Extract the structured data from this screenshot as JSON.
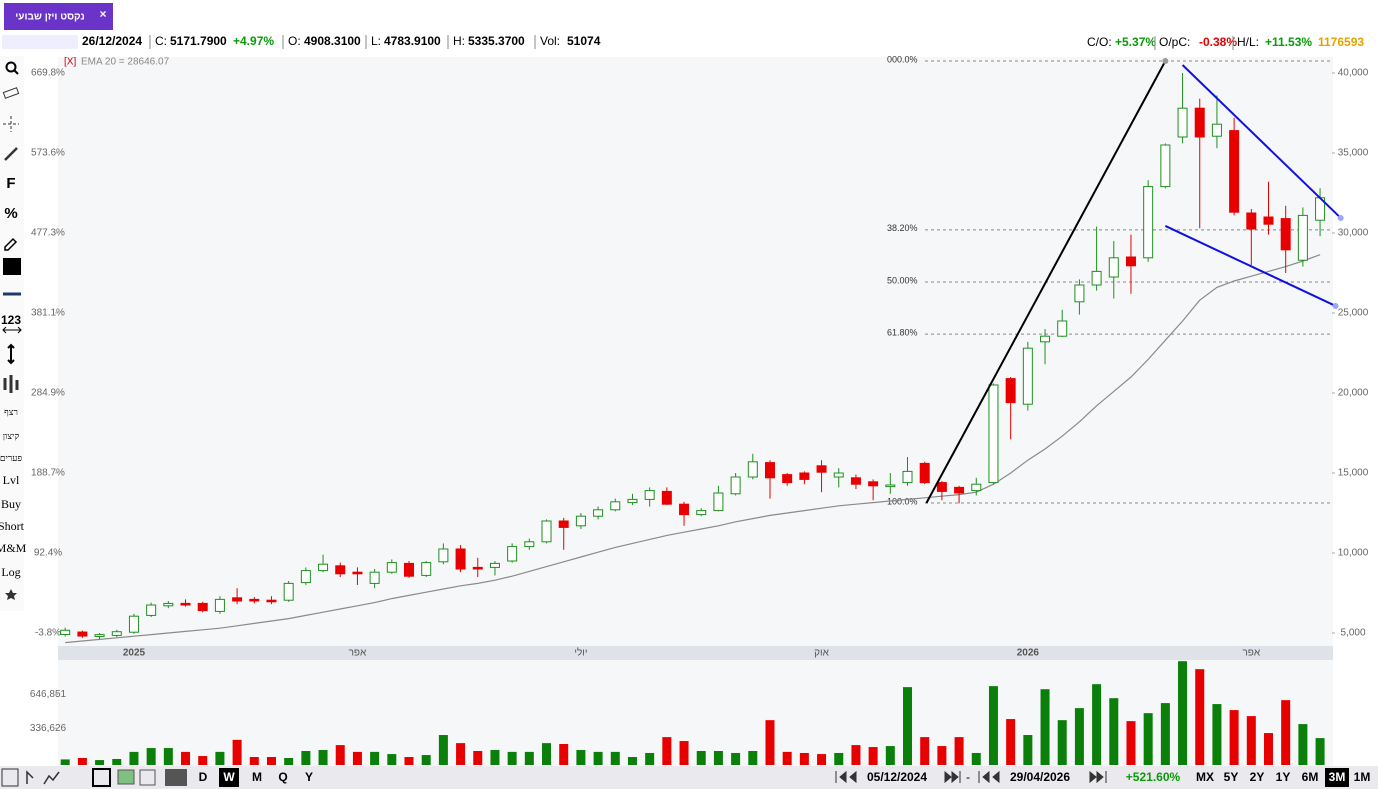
{
  "tab": {
    "title": "נקסט ויזן שבועי",
    "close": "×"
  },
  "header": {
    "date": "26/12/2024",
    "c_label": "C:",
    "c": "5171.7900",
    "c_change": "+4.97%",
    "o_label": "O:",
    "o": "4908.3100",
    "l_label": "L:",
    "l": "4783.9100",
    "h_label": "H:",
    "h": "5335.3700",
    "vol_label": "Vol:",
    "vol": "51074",
    "co_label": "C/O:",
    "co": "+5.37%",
    "opc_label": "O/pC:",
    "opc": "-0.38%",
    "hl_label": "H/L:",
    "hl": "+11.53%",
    "total": "1176593"
  },
  "sidebar": {
    "items": [
      "F",
      "%",
      "123",
      "רצף",
      "קיצון",
      "פערים",
      "Lvl",
      "Buy",
      "Short",
      "M&M",
      "Log"
    ]
  },
  "bottom": {
    "periods": [
      "D",
      "W",
      "M",
      "Q",
      "Y"
    ],
    "active_period": "W",
    "from": "05/12/2024",
    "dash": "-",
    "to": "29/04/2026",
    "change": "+521.60%",
    "ranges": [
      "MX",
      "5Y",
      "2Y",
      "1Y",
      "6M",
      "3M",
      "1M"
    ],
    "active_range": "3M"
  },
  "chart_data": {
    "type": "candlestick",
    "ema_tag": "[X]",
    "ema_label": "EMA 20 = 28646.07",
    "categories": [
      null,
      null,
      null,
      null,
      "2025",
      null,
      null,
      null,
      null,
      null,
      null,
      null,
      null,
      null,
      null,
      null,
      null,
      "אפר",
      null,
      null,
      null,
      null,
      null,
      null,
      null,
      null,
      null,
      null,
      null,
      null,
      "יולי",
      null,
      null,
      null,
      null,
      null,
      null,
      null,
      null,
      null,
      null,
      null,
      null,
      null,
      "אוק",
      null,
      null,
      null,
      null,
      null,
      null,
      null,
      null,
      null,
      null,
      null,
      "2026",
      null,
      null,
      null,
      null,
      null,
      null,
      null,
      null,
      null,
      null,
      null,
      null,
      "אפר",
      null,
      null,
      null,
      null
    ],
    "open": [
      4908.31,
      5060,
      4780,
      4850,
      5050,
      6100,
      6700,
      6850,
      6850,
      6350,
      7200,
      7100,
      7050,
      7050,
      8150,
      8900,
      9200,
      8800,
      8100,
      8800,
      9350,
      8600,
      9450,
      10250,
      9100,
      9100,
      9500,
      10400,
      10700,
      12000,
      11700,
      12300,
      12700,
      13150,
      13350,
      13850,
      13050,
      12400,
      12650,
      13700,
      14750,
      15650,
      14900,
      15000,
      15450,
      14750,
      14700,
      14450,
      14150,
      14400,
      15600,
      14400,
      14100,
      13900,
      14400,
      20900,
      19300,
      23200,
      23550,
      25700,
      26750,
      27250,
      28500,
      28450,
      32900,
      36000,
      37800,
      36050,
      36400,
      31250,
      31000,
      30900,
      28300,
      30800
    ],
    "high": [
      5335.37,
      5150,
      5000,
      5200,
      6200,
      6900,
      7000,
      7100,
      6950,
      7300,
      7800,
      7250,
      7300,
      8250,
      9100,
      9900,
      9400,
      9100,
      9000,
      9600,
      9500,
      9500,
      10600,
      10500,
      9700,
      9500,
      10600,
      10900,
      12100,
      12200,
      12500,
      12900,
      13400,
      13700,
      14100,
      14100,
      13200,
      12800,
      14200,
      15000,
      16200,
      15800,
      15000,
      15100,
      15800,
      15300,
      14900,
      14600,
      15000,
      16000,
      15700,
      14500,
      14200,
      14700,
      20600,
      21000,
      23200,
      24000,
      25200,
      27100,
      30400,
      29500,
      29900,
      33300,
      35600,
      40000,
      38400,
      38600,
      37200,
      31500,
      33200,
      31700,
      31600,
      32800
    ],
    "low": [
      4783.91,
      4700,
      4600,
      4750,
      4950,
      6000,
      6550,
      6650,
      6300,
      6200,
      6800,
      6850,
      6800,
      6950,
      8000,
      8800,
      8500,
      8000,
      7800,
      8700,
      8450,
      8500,
      9300,
      8800,
      8500,
      8600,
      9400,
      10200,
      10600,
      10200,
      11500,
      12100,
      12600,
      13000,
      12900,
      13000,
      11700,
      12300,
      12600,
      13600,
      14600,
      13400,
      14200,
      14300,
      13800,
      14100,
      14000,
      13300,
      13700,
      14200,
      14300,
      13300,
      13100,
      13600,
      14300,
      17100,
      18900,
      21800,
      23500,
      24900,
      26400,
      25900,
      26200,
      28200,
      32800,
      35600,
      30300,
      35300,
      31100,
      28000,
      29900,
      27500,
      27900,
      29800
    ],
    "close": [
      5171.79,
      4810,
      4900,
      5080,
      6050,
      6750,
      6850,
      6750,
      6400,
      7100,
      7000,
      7000,
      6950,
      8100,
      8900,
      9300,
      8700,
      8700,
      8800,
      9400,
      8550,
      9400,
      10250,
      9000,
      9000,
      9350,
      10400,
      10700,
      12000,
      11600,
      12300,
      12700,
      13200,
      13350,
      13900,
      13050,
      12400,
      12650,
      13750,
      14750,
      15700,
      14700,
      14400,
      14600,
      15050,
      15000,
      14300,
      14200,
      14250,
      15100,
      14400,
      13850,
      13750,
      14300,
      20500,
      19400,
      22800,
      23550,
      24500,
      26750,
      27600,
      28450,
      27950,
      32900,
      35500,
      37800,
      36000,
      36800,
      31300,
      30250,
      30550,
      28950,
      31100,
      32200
    ],
    "up_color": "#1f8f1f",
    "down_color": "#e80000",
    "ema": {
      "name": "EMA 20",
      "color": "#8a8a8a",
      "values": [
        4400,
        4500,
        4600,
        4700,
        4800,
        4900,
        5000,
        5100,
        5200,
        5300,
        5450,
        5600,
        5750,
        5900,
        6100,
        6300,
        6500,
        6700,
        6900,
        7150,
        7350,
        7550,
        7750,
        7950,
        8100,
        8300,
        8550,
        8850,
        9150,
        9450,
        9750,
        10050,
        10350,
        10600,
        10850,
        11100,
        11300,
        11500,
        11700,
        11950,
        12150,
        12350,
        12500,
        12650,
        12800,
        12950,
        13050,
        13150,
        13250,
        13350,
        13450,
        13550,
        13650,
        13800,
        14300,
        15000,
        15800,
        16500,
        17300,
        18200,
        19200,
        20100,
        21000,
        22100,
        23300,
        24500,
        25800,
        26600,
        27000,
        27300,
        27600,
        27900,
        28250,
        28646.07
      ]
    },
    "ylim": [
      4250,
      41000
    ],
    "yticks": [
      {
        "value": 5000,
        "label": "5,000"
      },
      {
        "value": 10000,
        "label": "10,000"
      },
      {
        "value": 15000,
        "label": "15,000"
      },
      {
        "value": 20000,
        "label": "20,000"
      },
      {
        "value": 25000,
        "label": "25,000"
      },
      {
        "value": 30000,
        "label": "30,000"
      },
      {
        "value": 35000,
        "label": "35,000"
      },
      {
        "value": 40000,
        "label": "40,000"
      }
    ],
    "y2lim": [
      -18.23,
      689.04
    ],
    "y2ticks": [
      {
        "value": -3.8,
        "label": "-3.8%"
      },
      {
        "value": 92.4,
        "label": "92.4%"
      },
      {
        "value": 188.7,
        "label": "188.7%"
      },
      {
        "value": 284.9,
        "label": "284.9%"
      },
      {
        "value": 381.1,
        "label": "381.1%"
      },
      {
        "value": 477.3,
        "label": "477.3%"
      },
      {
        "value": 573.6,
        "label": "573.6%"
      },
      {
        "value": 669.8,
        "label": "669.8%"
      }
    ],
    "fib": [
      {
        "label": "000.0%",
        "value": 40750
      },
      {
        "label": "38.20%",
        "value": 30197
      },
      {
        "label": "50.00%",
        "value": 26937
      },
      {
        "label": "61.80%",
        "value": 23678
      },
      {
        "label": "100.0%",
        "value": 13125
      }
    ],
    "trendlines": [
      {
        "color": "#000000",
        "x": [
          50.1,
          64
        ],
        "y": [
          13125,
          40750
        ]
      },
      {
        "color": "#1010e0",
        "x": [
          65,
          74.2
        ],
        "y": [
          40500,
          30940
        ]
      },
      {
        "color": "#1010e0",
        "x": [
          64,
          73.9
        ],
        "y": [
          30440,
          25440
        ]
      }
    ],
    "volume": [
      51074,
      64000,
      45000,
      55000,
      120000,
      155000,
      155000,
      120000,
      82000,
      120000,
      230000,
      73000,
      73000,
      64000,
      128000,
      137000,
      182000,
      120000,
      120000,
      100000,
      73000,
      91000,
      274000,
      200000,
      128000,
      137000,
      120000,
      120000,
      200000,
      192000,
      137000,
      120000,
      120000,
      73000,
      110000,
      255000,
      219000,
      128000,
      128000,
      110000,
      128000,
      410000,
      120000,
      110000,
      100000,
      110000,
      182000,
      164000,
      173000,
      712000,
      255000,
      173000,
      255000,
      110000,
      721000,
      420000,
      274000,
      693000,
      410000,
      520000,
      739000,
      611000,
      401000,
      474000,
      566000,
      949000,
      876000,
      557000,
      502000,
      447000,
      292000,
      593000,
      374000,
      246000
    ],
    "volume_up_color": "#0a7f0a",
    "volume_down_color": "#e60000",
    "vlim": [
      0,
      960000
    ],
    "vticks": [
      {
        "value": 336626,
        "label": "336,626"
      },
      {
        "value": 646851,
        "label": "646,851"
      }
    ]
  }
}
